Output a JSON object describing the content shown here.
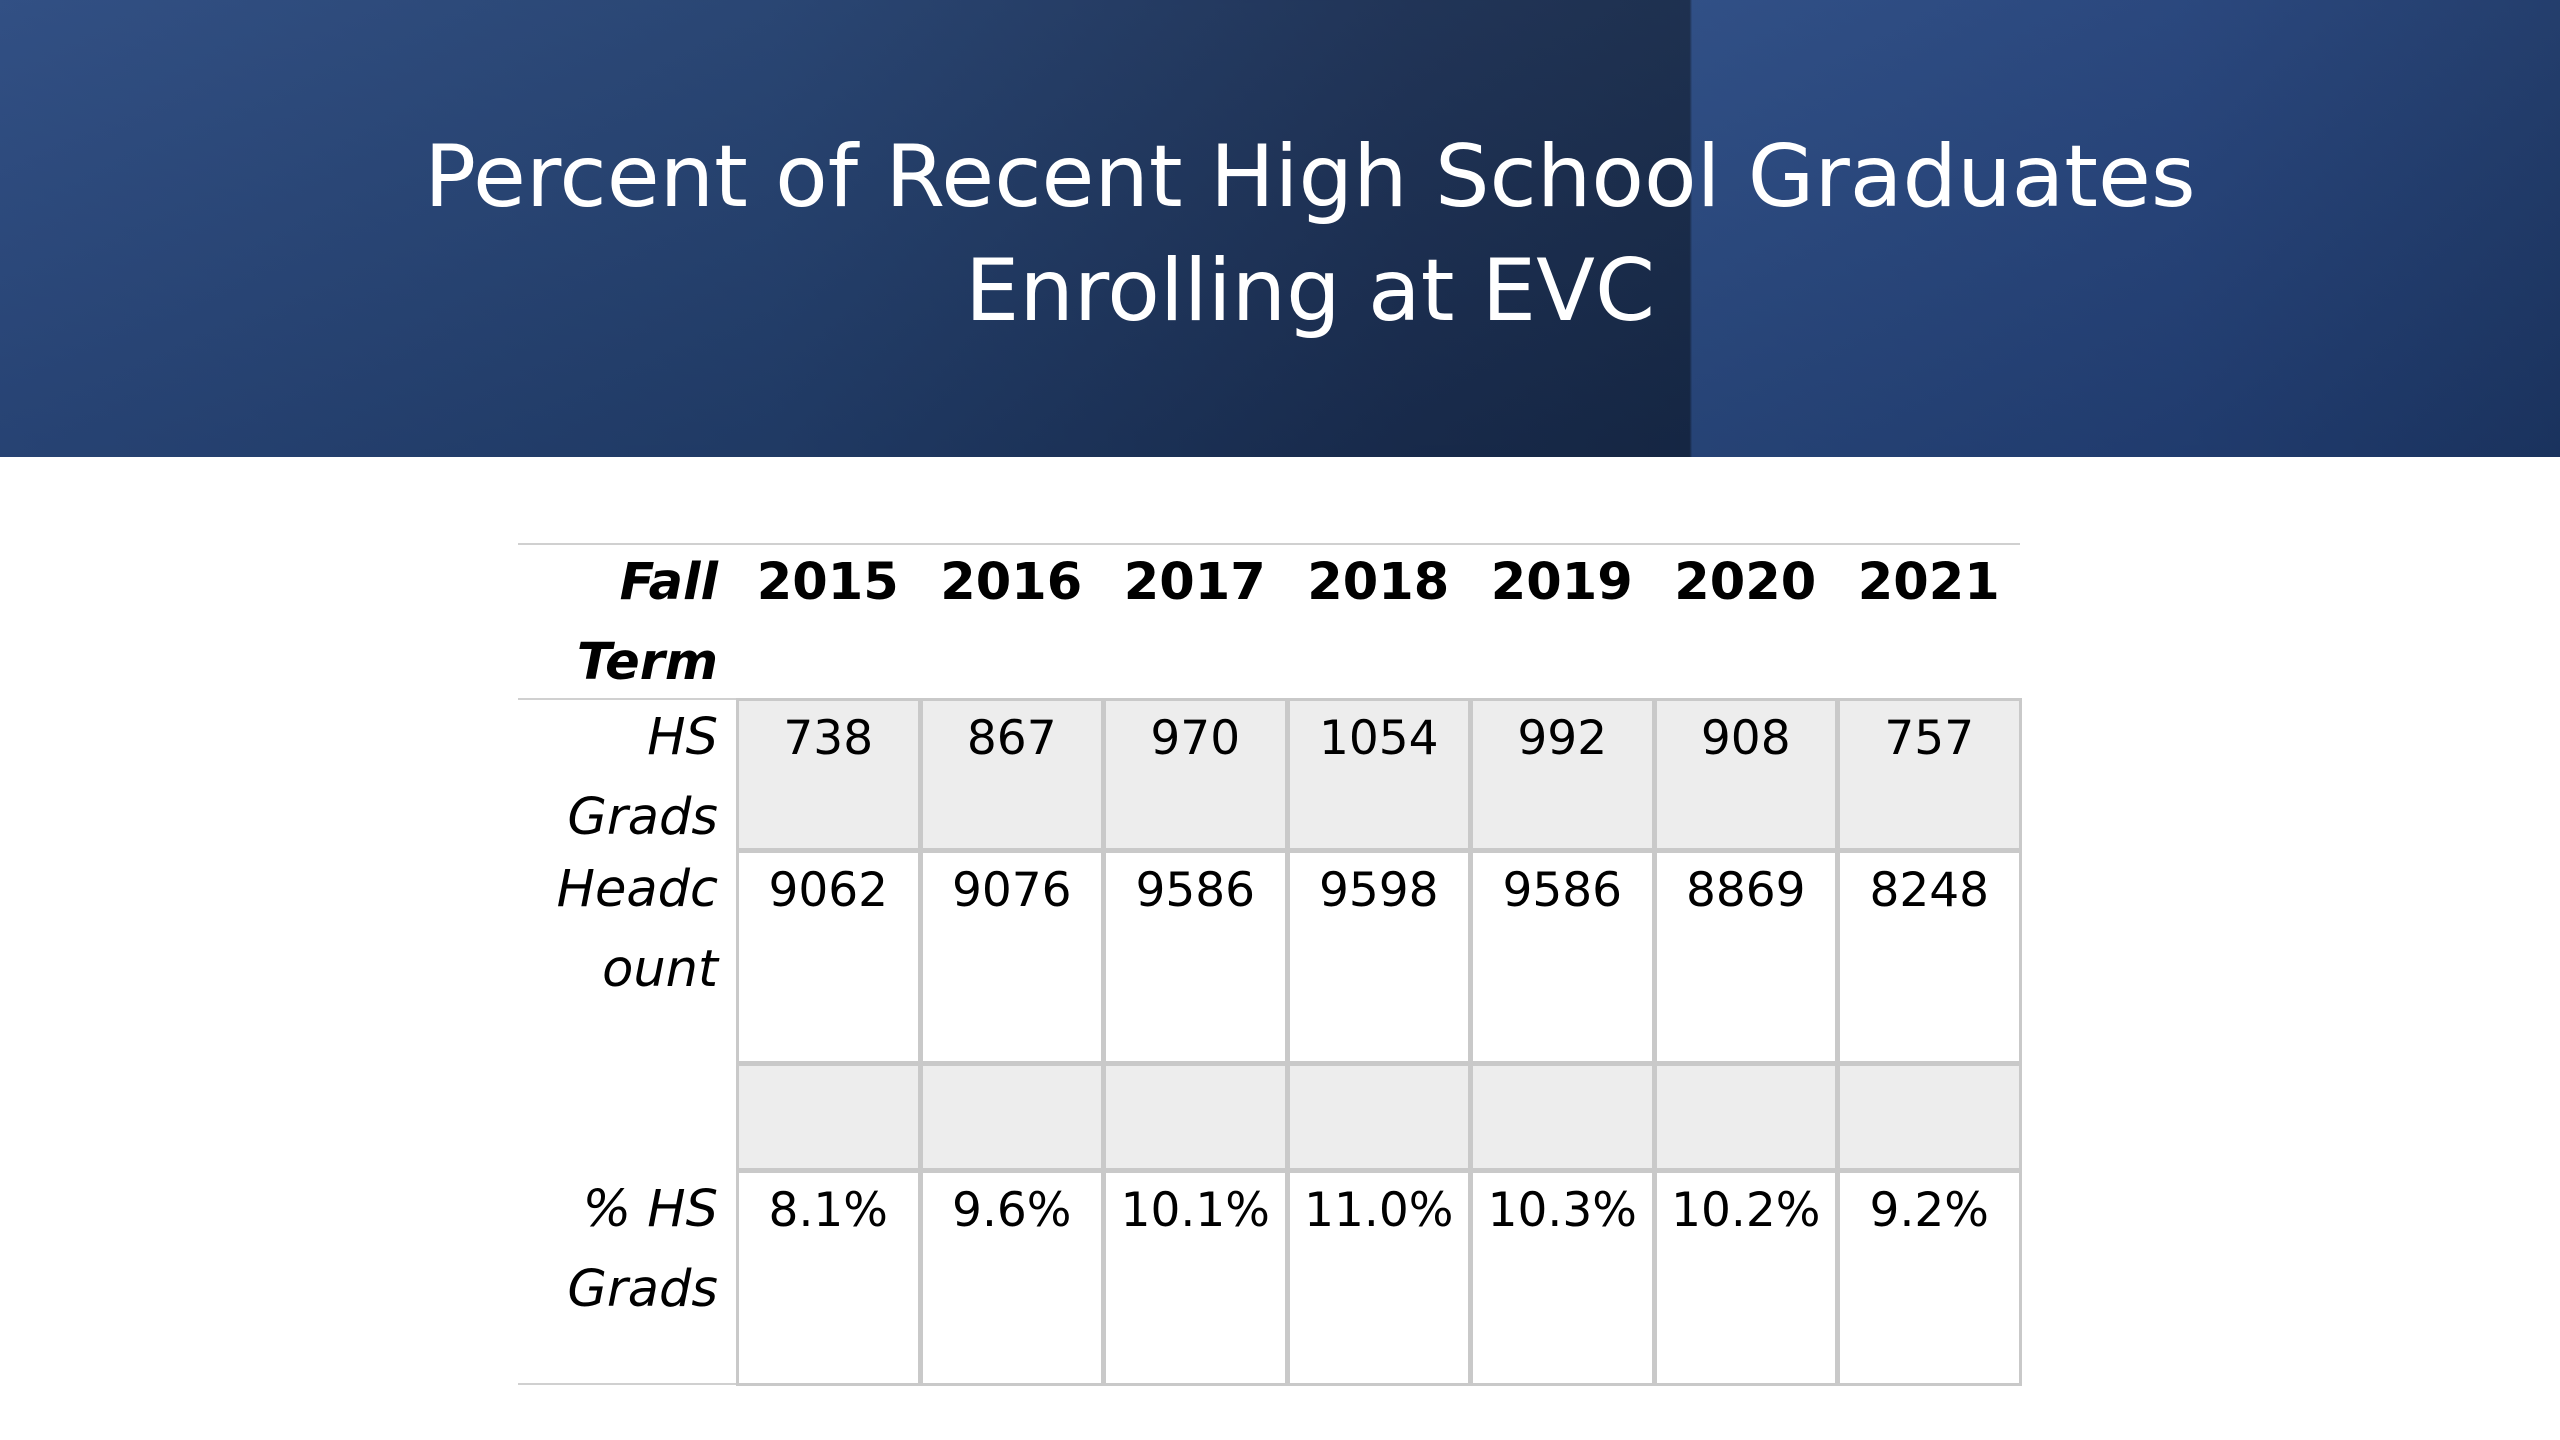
{
  "slide": {
    "title_line1": "Percent of Recent High School Graduates",
    "title_line2": "Enrolling at EVC"
  },
  "table": {
    "header_label": "Fall\nTerm",
    "years": [
      "2015",
      "2016",
      "2017",
      "2018",
      "2019",
      "2020",
      "2021"
    ],
    "rows": [
      {
        "label": "HS\nGrads",
        "values": [
          "738",
          "867",
          "970",
          "1054",
          "992",
          "908",
          "757"
        ]
      },
      {
        "label": "Headc\nount",
        "values": [
          "9062",
          "9076",
          "9586",
          "9598",
          "9586",
          "8869",
          "8248"
        ]
      },
      {
        "label": "",
        "values": [
          "",
          "",
          "",
          "",
          "",
          "",
          ""
        ]
      },
      {
        "label": "% HS\nGrads",
        "values": [
          "8.1%",
          "9.6%",
          "10.1%",
          "11.0%",
          "10.3%",
          "10.2%",
          "9.2%"
        ]
      }
    ]
  }
}
